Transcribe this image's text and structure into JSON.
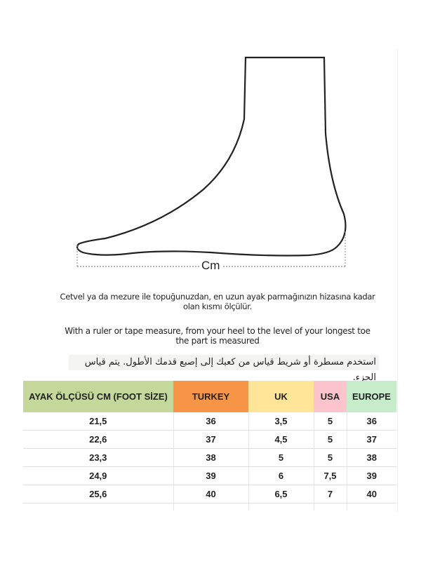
{
  "diagram": {
    "measure_label": "Cm"
  },
  "instructions": {
    "turkish_line1": "Cetvel ya da mezure ile topuğunuzdan, en uzun ayak parmağınızın hizasına kadar",
    "turkish_line2": "olan kısmı ölçülür.",
    "english_line1": "With a ruler or tape measure, from your heel to the level of your longest toe",
    "english_line2": "the part is measured",
    "arabic": "استخدم مسطرة أو شريط قياس من كعبك إلى إصبع قدمك الأطول.  يتم قياس الجزء."
  },
  "table": {
    "headers": [
      {
        "label": "AYAK ÖLÇÜSÜ CM (FOOT SİZE)",
        "color": "#c5d89c"
      },
      {
        "label": "TURKEY",
        "color": "#f79546"
      },
      {
        "label": "UK",
        "color": "#fee598"
      },
      {
        "label": "USA",
        "color": "#fcc4cc"
      },
      {
        "label": "EUROPE",
        "color": "#c6eccc"
      }
    ],
    "rows": [
      [
        "21,5",
        "36",
        "3,5",
        "5",
        "36"
      ],
      [
        "22,6",
        "37",
        "4,5",
        "5",
        "37"
      ],
      [
        "23,3",
        "38",
        "5",
        "5",
        "38"
      ],
      [
        "24,9",
        "39",
        "6",
        "7,5",
        "39"
      ],
      [
        "25,6",
        "40",
        "6,5",
        "7",
        "40"
      ]
    ]
  }
}
